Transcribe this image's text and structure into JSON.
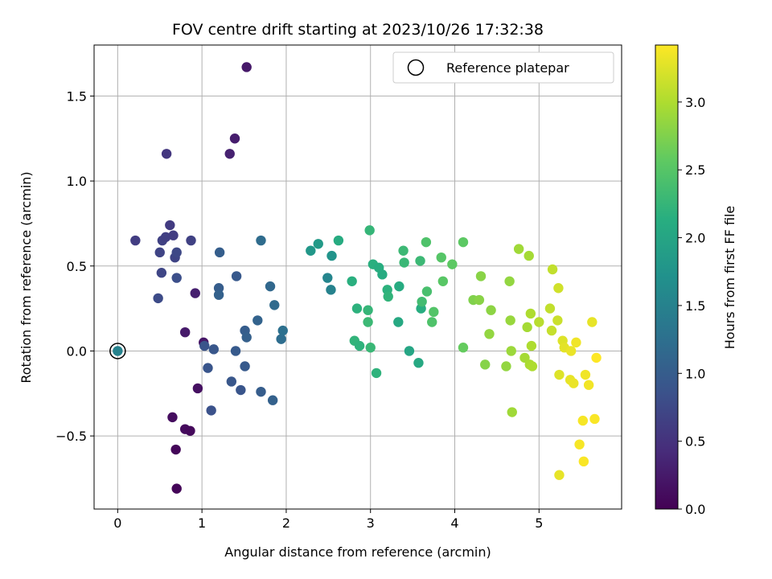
{
  "chart_data": {
    "type": "scatter",
    "title": "FOV centre drift starting at 2023/10/26 17:32:38",
    "xlabel": "Angular distance from reference (arcmin)",
    "ylabel": "Rotation from reference (arcmin)",
    "xlim": [
      -0.28,
      5.98
    ],
    "ylim": [
      -0.93,
      1.8
    ],
    "xticks": [
      0,
      1,
      2,
      3,
      4,
      5
    ],
    "yticks": [
      -0.5,
      0.0,
      0.5,
      1.0,
      1.5
    ],
    "ytick_labels": [
      "−0.5",
      "0.0",
      "0.5",
      "1.0",
      "1.5"
    ],
    "grid": true,
    "legend": {
      "position": "top-right",
      "entries": [
        "Reference platepar"
      ]
    },
    "reference_point": {
      "x": 0,
      "y": 0
    },
    "colorbar": {
      "label": "Hours from first FF file",
      "range": [
        0,
        3.42
      ],
      "ticks": [
        0.0,
        0.5,
        1.0,
        1.5,
        2.0,
        2.5,
        3.0
      ],
      "colormap": "viridis"
    },
    "points": [
      {
        "x": 0.0,
        "y": 0.0,
        "h": 1.5
      },
      {
        "x": 0.21,
        "y": 0.65,
        "h": 0.62
      },
      {
        "x": 0.5,
        "y": 0.58,
        "h": 0.7
      },
      {
        "x": 0.53,
        "y": 0.65,
        "h": 0.66
      },
      {
        "x": 0.57,
        "y": 0.67,
        "h": 0.64
      },
      {
        "x": 0.62,
        "y": 0.74,
        "h": 0.6
      },
      {
        "x": 0.66,
        "y": 0.68,
        "h": 0.62
      },
      {
        "x": 0.68,
        "y": 0.55,
        "h": 0.7
      },
      {
        "x": 0.7,
        "y": 0.58,
        "h": 0.74
      },
      {
        "x": 0.52,
        "y": 0.46,
        "h": 0.72
      },
      {
        "x": 0.48,
        "y": 0.31,
        "h": 0.78
      },
      {
        "x": 0.7,
        "y": 0.43,
        "h": 0.82
      },
      {
        "x": 0.58,
        "y": 1.16,
        "h": 0.55
      },
      {
        "x": 0.87,
        "y": 0.65,
        "h": 0.66
      },
      {
        "x": 0.92,
        "y": 0.34,
        "h": 0.3
      },
      {
        "x": 0.8,
        "y": 0.11,
        "h": 0.25
      },
      {
        "x": 1.02,
        "y": 0.05,
        "h": 0.2
      },
      {
        "x": 0.95,
        "y": -0.22,
        "h": 0.15
      },
      {
        "x": 0.65,
        "y": -0.39,
        "h": 0.12
      },
      {
        "x": 0.8,
        "y": -0.46,
        "h": 0.1
      },
      {
        "x": 0.86,
        "y": -0.47,
        "h": 0.08
      },
      {
        "x": 0.69,
        "y": -0.58,
        "h": 0.06
      },
      {
        "x": 0.7,
        "y": -0.81,
        "h": 0.04
      },
      {
        "x": 1.03,
        "y": 0.03,
        "h": 0.88
      },
      {
        "x": 1.07,
        "y": -0.1,
        "h": 0.9
      },
      {
        "x": 1.11,
        "y": -0.35,
        "h": 0.86
      },
      {
        "x": 1.14,
        "y": 0.01,
        "h": 0.92
      },
      {
        "x": 1.2,
        "y": 0.37,
        "h": 1.0
      },
      {
        "x": 1.2,
        "y": 0.33,
        "h": 1.05
      },
      {
        "x": 1.21,
        "y": 0.58,
        "h": 1.02
      },
      {
        "x": 1.33,
        "y": 1.16,
        "h": 0.32
      },
      {
        "x": 1.39,
        "y": 1.25,
        "h": 0.28
      },
      {
        "x": 1.53,
        "y": 1.67,
        "h": 0.24
      },
      {
        "x": 1.35,
        "y": -0.18,
        "h": 0.92
      },
      {
        "x": 1.4,
        "y": 0.0,
        "h": 0.96
      },
      {
        "x": 1.41,
        "y": 0.44,
        "h": 0.95
      },
      {
        "x": 1.46,
        "y": -0.23,
        "h": 0.9
      },
      {
        "x": 1.51,
        "y": -0.09,
        "h": 0.96
      },
      {
        "x": 1.51,
        "y": 0.12,
        "h": 1.0
      },
      {
        "x": 1.53,
        "y": 0.08,
        "h": 1.04
      },
      {
        "x": 1.66,
        "y": 0.18,
        "h": 1.08
      },
      {
        "x": 1.7,
        "y": 0.65,
        "h": 1.2
      },
      {
        "x": 1.7,
        "y": -0.24,
        "h": 1.0
      },
      {
        "x": 1.81,
        "y": 0.38,
        "h": 1.15
      },
      {
        "x": 1.84,
        "y": -0.29,
        "h": 1.05
      },
      {
        "x": 1.86,
        "y": 0.27,
        "h": 1.18
      },
      {
        "x": 1.94,
        "y": 0.07,
        "h": 1.22
      },
      {
        "x": 1.96,
        "y": 0.12,
        "h": 1.25
      },
      {
        "x": 2.29,
        "y": 0.59,
        "h": 1.8
      },
      {
        "x": 2.38,
        "y": 0.63,
        "h": 1.85
      },
      {
        "x": 2.49,
        "y": 0.43,
        "h": 1.55
      },
      {
        "x": 2.53,
        "y": 0.36,
        "h": 1.5
      },
      {
        "x": 2.54,
        "y": 0.56,
        "h": 1.75
      },
      {
        "x": 2.62,
        "y": 0.65,
        "h": 2.1
      },
      {
        "x": 2.78,
        "y": 0.41,
        "h": 2.15
      },
      {
        "x": 2.81,
        "y": 0.06,
        "h": 2.22
      },
      {
        "x": 2.84,
        "y": 0.25,
        "h": 2.18
      },
      {
        "x": 2.87,
        "y": 0.03,
        "h": 2.2
      },
      {
        "x": 2.97,
        "y": 0.24,
        "h": 2.25
      },
      {
        "x": 2.97,
        "y": 0.17,
        "h": 2.3
      },
      {
        "x": 2.99,
        "y": 0.71,
        "h": 2.25
      },
      {
        "x": 3.0,
        "y": 0.02,
        "h": 2.28
      },
      {
        "x": 3.03,
        "y": 0.51,
        "h": 2.15
      },
      {
        "x": 3.07,
        "y": -0.13,
        "h": 2.2
      },
      {
        "x": 3.1,
        "y": 0.49,
        "h": 2.12
      },
      {
        "x": 3.14,
        "y": 0.45,
        "h": 2.1
      },
      {
        "x": 3.2,
        "y": 0.36,
        "h": 2.18
      },
      {
        "x": 3.21,
        "y": 0.32,
        "h": 2.22
      },
      {
        "x": 3.33,
        "y": 0.17,
        "h": 2.05
      },
      {
        "x": 3.34,
        "y": 0.38,
        "h": 2.1
      },
      {
        "x": 3.39,
        "y": 0.59,
        "h": 2.3
      },
      {
        "x": 3.4,
        "y": 0.52,
        "h": 2.28
      },
      {
        "x": 3.46,
        "y": 0.0,
        "h": 2.0
      },
      {
        "x": 3.57,
        "y": -0.07,
        "h": 2.05
      },
      {
        "x": 3.59,
        "y": 0.53,
        "h": 2.3
      },
      {
        "x": 3.6,
        "y": 0.25,
        "h": 2.12
      },
      {
        "x": 3.61,
        "y": 0.29,
        "h": 2.35
      },
      {
        "x": 3.66,
        "y": 0.64,
        "h": 2.45
      },
      {
        "x": 3.67,
        "y": 0.35,
        "h": 2.4
      },
      {
        "x": 3.73,
        "y": 0.17,
        "h": 2.45
      },
      {
        "x": 3.75,
        "y": 0.23,
        "h": 2.48
      },
      {
        "x": 3.84,
        "y": 0.55,
        "h": 2.5
      },
      {
        "x": 3.86,
        "y": 0.41,
        "h": 2.52
      },
      {
        "x": 3.97,
        "y": 0.51,
        "h": 2.55
      },
      {
        "x": 4.1,
        "y": 0.02,
        "h": 2.6
      },
      {
        "x": 4.1,
        "y": 0.64,
        "h": 2.55
      },
      {
        "x": 4.22,
        "y": 0.3,
        "h": 2.75
      },
      {
        "x": 4.29,
        "y": 0.3,
        "h": 2.8
      },
      {
        "x": 4.31,
        "y": 0.44,
        "h": 2.8
      },
      {
        "x": 4.36,
        "y": -0.08,
        "h": 2.78
      },
      {
        "x": 4.41,
        "y": 0.1,
        "h": 2.85
      },
      {
        "x": 4.43,
        "y": 0.24,
        "h": 2.82
      },
      {
        "x": 4.61,
        "y": -0.09,
        "h": 2.85
      },
      {
        "x": 4.65,
        "y": 0.41,
        "h": 2.85
      },
      {
        "x": 4.66,
        "y": 0.18,
        "h": 2.88
      },
      {
        "x": 4.67,
        "y": 0.0,
        "h": 2.9
      },
      {
        "x": 4.68,
        "y": -0.36,
        "h": 2.92
      },
      {
        "x": 4.76,
        "y": 0.6,
        "h": 2.92
      },
      {
        "x": 4.83,
        "y": -0.04,
        "h": 2.95
      },
      {
        "x": 4.86,
        "y": 0.14,
        "h": 2.95
      },
      {
        "x": 4.88,
        "y": 0.56,
        "h": 2.95
      },
      {
        "x": 4.89,
        "y": -0.08,
        "h": 2.98
      },
      {
        "x": 4.9,
        "y": 0.22,
        "h": 3.0
      },
      {
        "x": 4.91,
        "y": 0.03,
        "h": 3.0
      },
      {
        "x": 4.92,
        "y": -0.09,
        "h": 3.0
      },
      {
        "x": 5.0,
        "y": 0.17,
        "h": 3.05
      },
      {
        "x": 5.13,
        "y": 0.25,
        "h": 3.1
      },
      {
        "x": 5.16,
        "y": 0.48,
        "h": 3.1
      },
      {
        "x": 5.15,
        "y": 0.12,
        "h": 3.12
      },
      {
        "x": 5.22,
        "y": 0.18,
        "h": 3.15
      },
      {
        "x": 5.23,
        "y": 0.37,
        "h": 3.18
      },
      {
        "x": 5.24,
        "y": -0.14,
        "h": 3.25
      },
      {
        "x": 5.24,
        "y": -0.73,
        "h": 3.3
      },
      {
        "x": 5.28,
        "y": 0.06,
        "h": 3.25
      },
      {
        "x": 5.3,
        "y": 0.02,
        "h": 3.28
      },
      {
        "x": 5.37,
        "y": -0.17,
        "h": 3.3
      },
      {
        "x": 5.38,
        "y": 0.0,
        "h": 3.32
      },
      {
        "x": 5.41,
        "y": -0.19,
        "h": 3.32
      },
      {
        "x": 5.44,
        "y": 0.05,
        "h": 3.35
      },
      {
        "x": 5.48,
        "y": -0.55,
        "h": 3.38
      },
      {
        "x": 5.52,
        "y": -0.41,
        "h": 3.38
      },
      {
        "x": 5.53,
        "y": -0.65,
        "h": 3.4
      },
      {
        "x": 5.55,
        "y": -0.14,
        "h": 3.35
      },
      {
        "x": 5.59,
        "y": -0.2,
        "h": 3.36
      },
      {
        "x": 5.63,
        "y": 0.17,
        "h": 3.3
      },
      {
        "x": 5.66,
        "y": -0.4,
        "h": 3.4
      },
      {
        "x": 5.68,
        "y": -0.04,
        "h": 3.42
      }
    ]
  }
}
